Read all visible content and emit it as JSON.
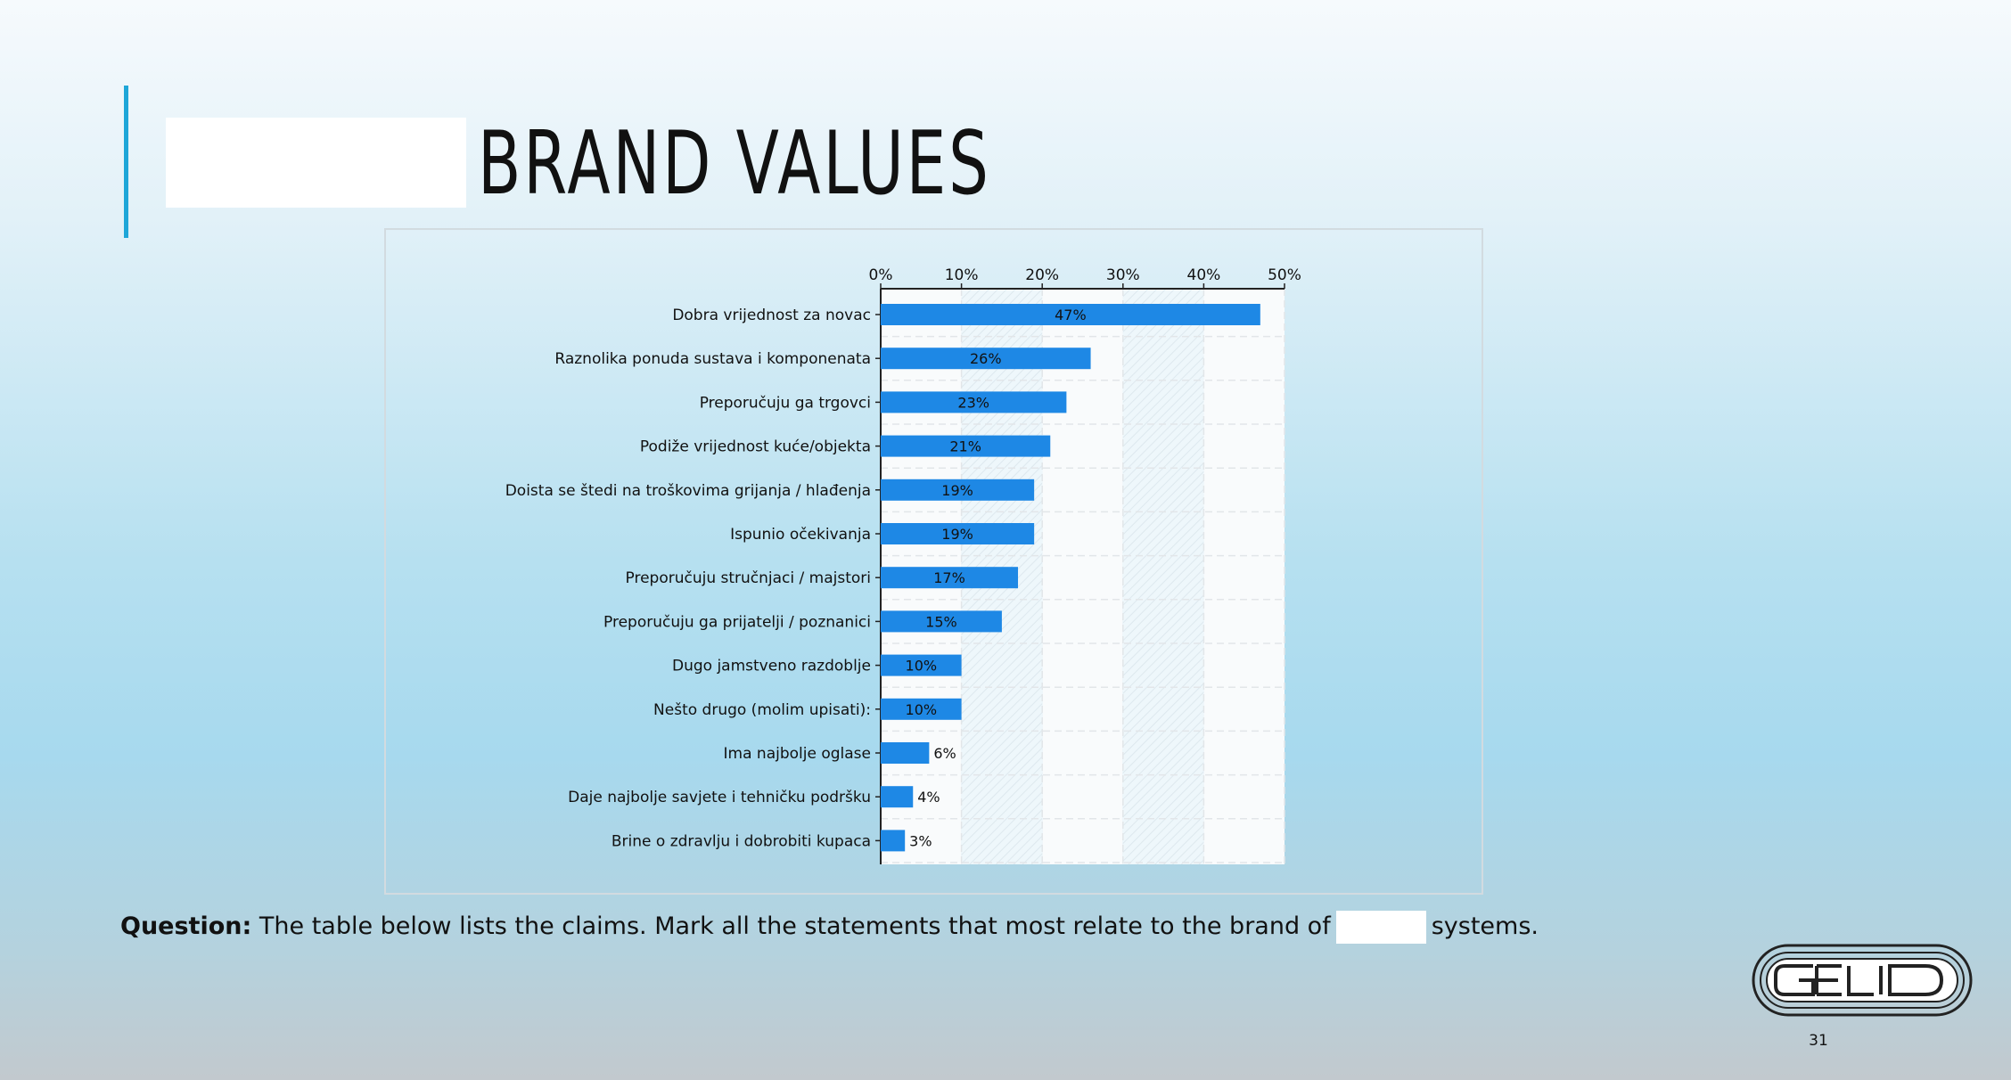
{
  "slide": {
    "title": "BRAND VALUES",
    "question_label": "Question:",
    "question_text": "The table below lists the claims. Mark all the statements that most relate to the brand of",
    "question_suffix": "systems.",
    "page_number": "31",
    "logo_name": "gelid-logo"
  },
  "colors": {
    "bar": "#1e88e5",
    "accent": "#1ea6d8",
    "text": "#111111"
  },
  "chart_data": {
    "type": "bar",
    "orientation": "horizontal",
    "x_axis_position": "top",
    "grid": true,
    "xlim": [
      0,
      50
    ],
    "ticks": [
      "0%",
      "10%",
      "20%",
      "30%",
      "40%",
      "50%"
    ],
    "categories": [
      "Dobra vrijednost za novac",
      "Raznolika ponuda sustava i komponenata",
      "Preporučuju ga trgovci",
      "Podiže vrijednost kuće/objekta",
      "Doista se štedi na troškovima grijanja / hlađenja",
      "Ispunio očekivanja",
      "Preporučuju stručnjaci / majstori",
      "Preporučuju ga prijatelji / poznanici",
      "Dugo jamstveno razdoblje",
      "Nešto drugo (molim upisati):",
      "Ima najbolje oglase",
      "Daje najbolje savjete i tehničku podršku",
      "Brine o zdravlju i dobrobiti kupaca"
    ],
    "values": [
      47,
      26,
      23,
      21,
      19,
      19,
      17,
      15,
      10,
      10,
      6,
      4,
      3
    ],
    "value_labels": [
      "47%",
      "26%",
      "23%",
      "21%",
      "19%",
      "19%",
      "17%",
      "15%",
      "10%",
      "10%",
      "6%",
      "4%",
      "3%"
    ]
  }
}
